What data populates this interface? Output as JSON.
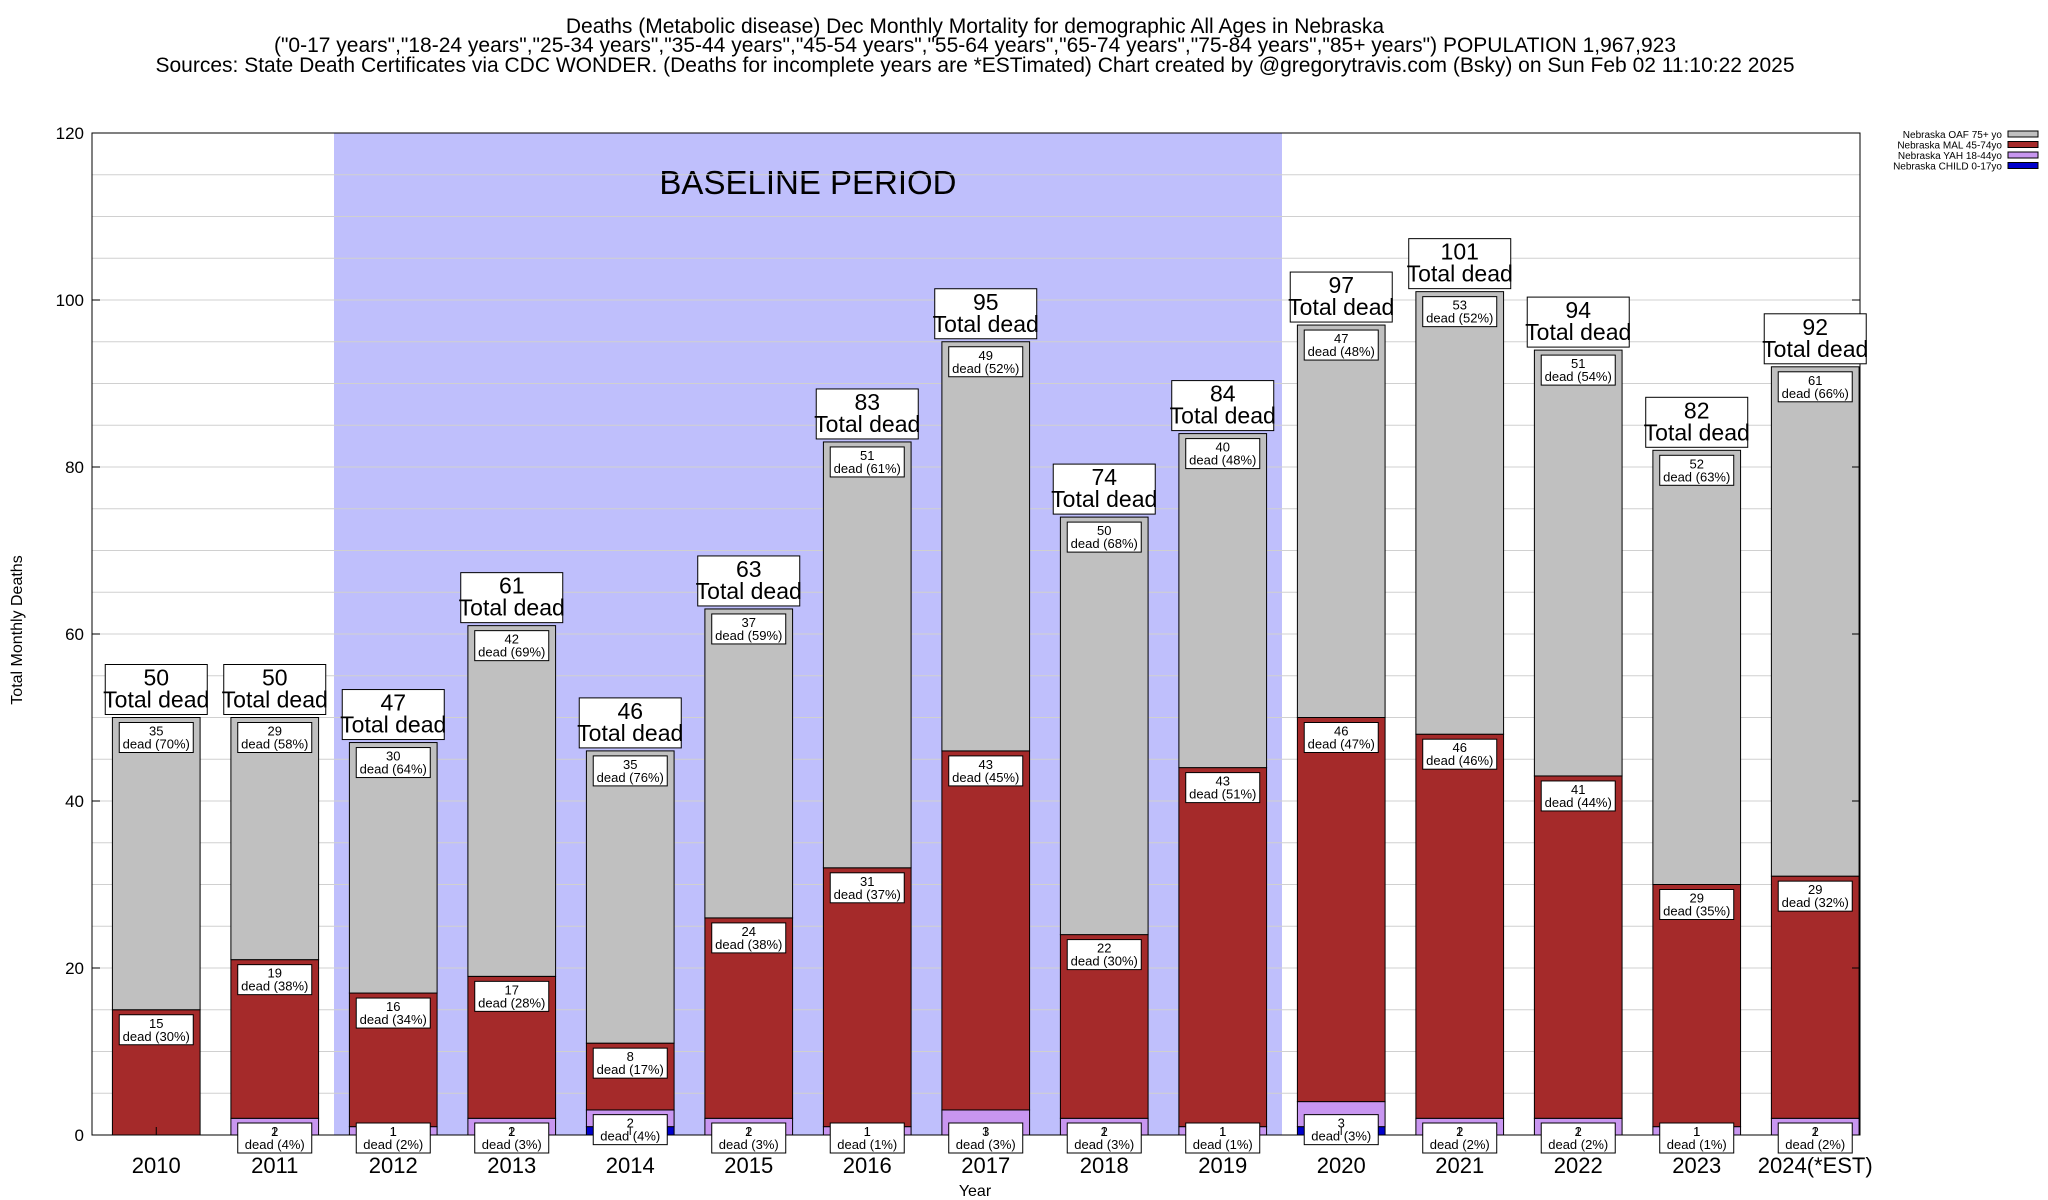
{
  "header": {
    "line1": "Deaths (Metabolic disease) Dec Monthly Mortality for demographic All Ages in Nebraska",
    "line2": "(\"0-17 years\",\"18-24 years\",\"25-34 years\",\"35-44 years\",\"45-54 years\",\"55-64 years\",\"65-74 years\",\"75-84 years\",\"85+ years\") POPULATION 1,967,923",
    "line3": "Sources: State Death Certificates via CDC WONDER. (Deaths for incomplete years are *ESTimated)                 Chart created by @gregorytravis.com (Bsky) on Sun Feb 02 11:10:22 2025"
  },
  "chart_data": {
    "type": "bar",
    "stacked": true,
    "xlabel": "Year",
    "ylabel": "Total Monthly Deaths",
    "ylim": [
      0,
      120
    ],
    "yticks": [
      0,
      20,
      40,
      60,
      80,
      100,
      120
    ],
    "grid": true,
    "legend_position": "top-right",
    "annotation": "BASELINE PERIOD",
    "baseline_categories": [
      "2012",
      "2019"
    ],
    "total_suffix": "Total dead",
    "categories": [
      "2010",
      "2011",
      "2012",
      "2013",
      "2014",
      "2015",
      "2016",
      "2017",
      "2018",
      "2019",
      "2020",
      "2021",
      "2022",
      "2023",
      "2024(*EST)"
    ],
    "series": [
      {
        "name": "Nebraska CHILD 0-17yo",
        "color": "#0000cc",
        "values": [
          0,
          0,
          0,
          0,
          1,
          0,
          0,
          0,
          0,
          0,
          1,
          0,
          0,
          0,
          0
        ],
        "labels": [
          "",
          "",
          "",
          "",
          "",
          "",
          "",
          "",
          "",
          "",
          "",
          "",
          "",
          "",
          ""
        ]
      },
      {
        "name": "Nebraska YAH 18-44yo",
        "color": "#c896f0",
        "values": [
          0,
          2,
          1,
          2,
          2,
          2,
          1,
          3,
          2,
          1,
          3,
          2,
          2,
          1,
          2
        ],
        "labels": [
          "",
          "2\ndead (4%)",
          "1\ndead (2%)",
          "2\ndead (3%)",
          "2\ndead (4%)",
          "2\ndead (3%)",
          "1\ndead (1%)",
          "3\ndead (3%)",
          "2\ndead (3%)",
          "1\ndead (1%)",
          "3\ndead (3%)",
          "2\ndead (2%)",
          "2\ndead (2%)",
          "1\ndead (1%)",
          "2\ndead (2%)"
        ]
      },
      {
        "name": "Nebraska MAL 45-74yo",
        "color": "#a52a2a",
        "values": [
          15,
          19,
          16,
          17,
          8,
          24,
          31,
          43,
          22,
          43,
          46,
          46,
          41,
          29,
          29
        ],
        "labels": [
          "15\ndead (30%)",
          "19\ndead (38%)",
          "16\ndead (34%)",
          "17\ndead (28%)",
          "8\ndead (17%)",
          "24\ndead (38%)",
          "31\ndead (37%)",
          "43\ndead (45%)",
          "22\ndead (30%)",
          "43\ndead (51%)",
          "46\ndead (47%)",
          "46\ndead (46%)",
          "41\ndead (44%)",
          "29\ndead (35%)",
          "29\ndead (32%)"
        ]
      },
      {
        "name": "Nebraska OAF 75+ yo",
        "color": "#c0c0c0",
        "values": [
          35,
          29,
          30,
          42,
          35,
          37,
          51,
          49,
          50,
          40,
          47,
          53,
          51,
          52,
          61
        ],
        "labels": [
          "35\ndead (70%)",
          "29\ndead (58%)",
          "30\ndead (64%)",
          "42\ndead (69%)",
          "35\ndead (76%)",
          "37\ndead (59%)",
          "51\ndead (61%)",
          "49\ndead (52%)",
          "50\ndead (68%)",
          "40\ndead (48%)",
          "47\ndead (48%)",
          "53\ndead (52%)",
          "51\ndead (54%)",
          "52\ndead (63%)",
          "61\ndead (66%)"
        ]
      }
    ],
    "totals": [
      50,
      50,
      47,
      61,
      46,
      63,
      83,
      95,
      74,
      84,
      97,
      101,
      94,
      82,
      92
    ],
    "legend_order": [
      "Nebraska OAF 75+ yo",
      "Nebraska MAL 45-74yo",
      "Nebraska YAH 18-44yo",
      "Nebraska CHILD 0-17yo"
    ],
    "colors": {
      "baseline_band": "#bfbffc",
      "grid": "#d0d0d0",
      "bar_outline": "#000000"
    }
  }
}
